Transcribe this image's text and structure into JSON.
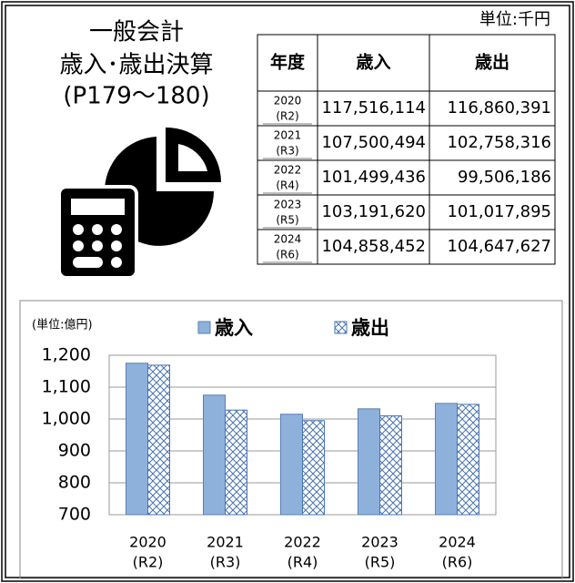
{
  "header": {
    "title_lines": [
      "一般会計",
      "歳入･歳出決算",
      "(P179～180)"
    ],
    "unit": "単位:千円"
  },
  "table": {
    "columns": [
      "年度",
      "歳入",
      "歳出"
    ],
    "rows": [
      {
        "year": "2020",
        "era": "(R2)",
        "revenue": "117,516,114",
        "expenditure": "116,860,391"
      },
      {
        "year": "2021",
        "era": "(R3)",
        "revenue": "107,500,494",
        "expenditure": "102,758,316"
      },
      {
        "year": "2022",
        "era": "(R4)",
        "revenue": "101,499,436",
        "expenditure": "99,506,186"
      },
      {
        "year": "2023",
        "era": "(R5)",
        "revenue": "103,191,620",
        "expenditure": "101,017,895"
      },
      {
        "year": "2024",
        "era": "(R6)",
        "revenue": "104,858,452",
        "expenditure": "104,647,627"
      }
    ]
  },
  "chart_data": {
    "type": "bar",
    "unit_label": "(単位:億円)",
    "categories": [
      [
        "2020",
        "(R2)"
      ],
      [
        "2021",
        "(R3)"
      ],
      [
        "2022",
        "(R4)"
      ],
      [
        "2023",
        "(R5)"
      ],
      [
        "2024",
        "(R6)"
      ]
    ],
    "series": [
      {
        "name": "歳入",
        "color": "#8eb1dc",
        "values": [
          1175,
          1075,
          1015,
          1032,
          1049
        ]
      },
      {
        "name": "歳出",
        "color": "#4a74b4",
        "pattern": "crosshatch",
        "values": [
          1169,
          1028,
          995,
          1010,
          1046
        ]
      }
    ],
    "ylim": [
      700,
      1200
    ],
    "yticks": [
      700,
      800,
      900,
      {
        "value": 1000,
        "label": "1,000"
      },
      {
        "value": 1100,
        "label": "1,100"
      },
      {
        "value": 1200,
        "label": "1,200"
      }
    ],
    "grid": true,
    "legend": "top"
  }
}
